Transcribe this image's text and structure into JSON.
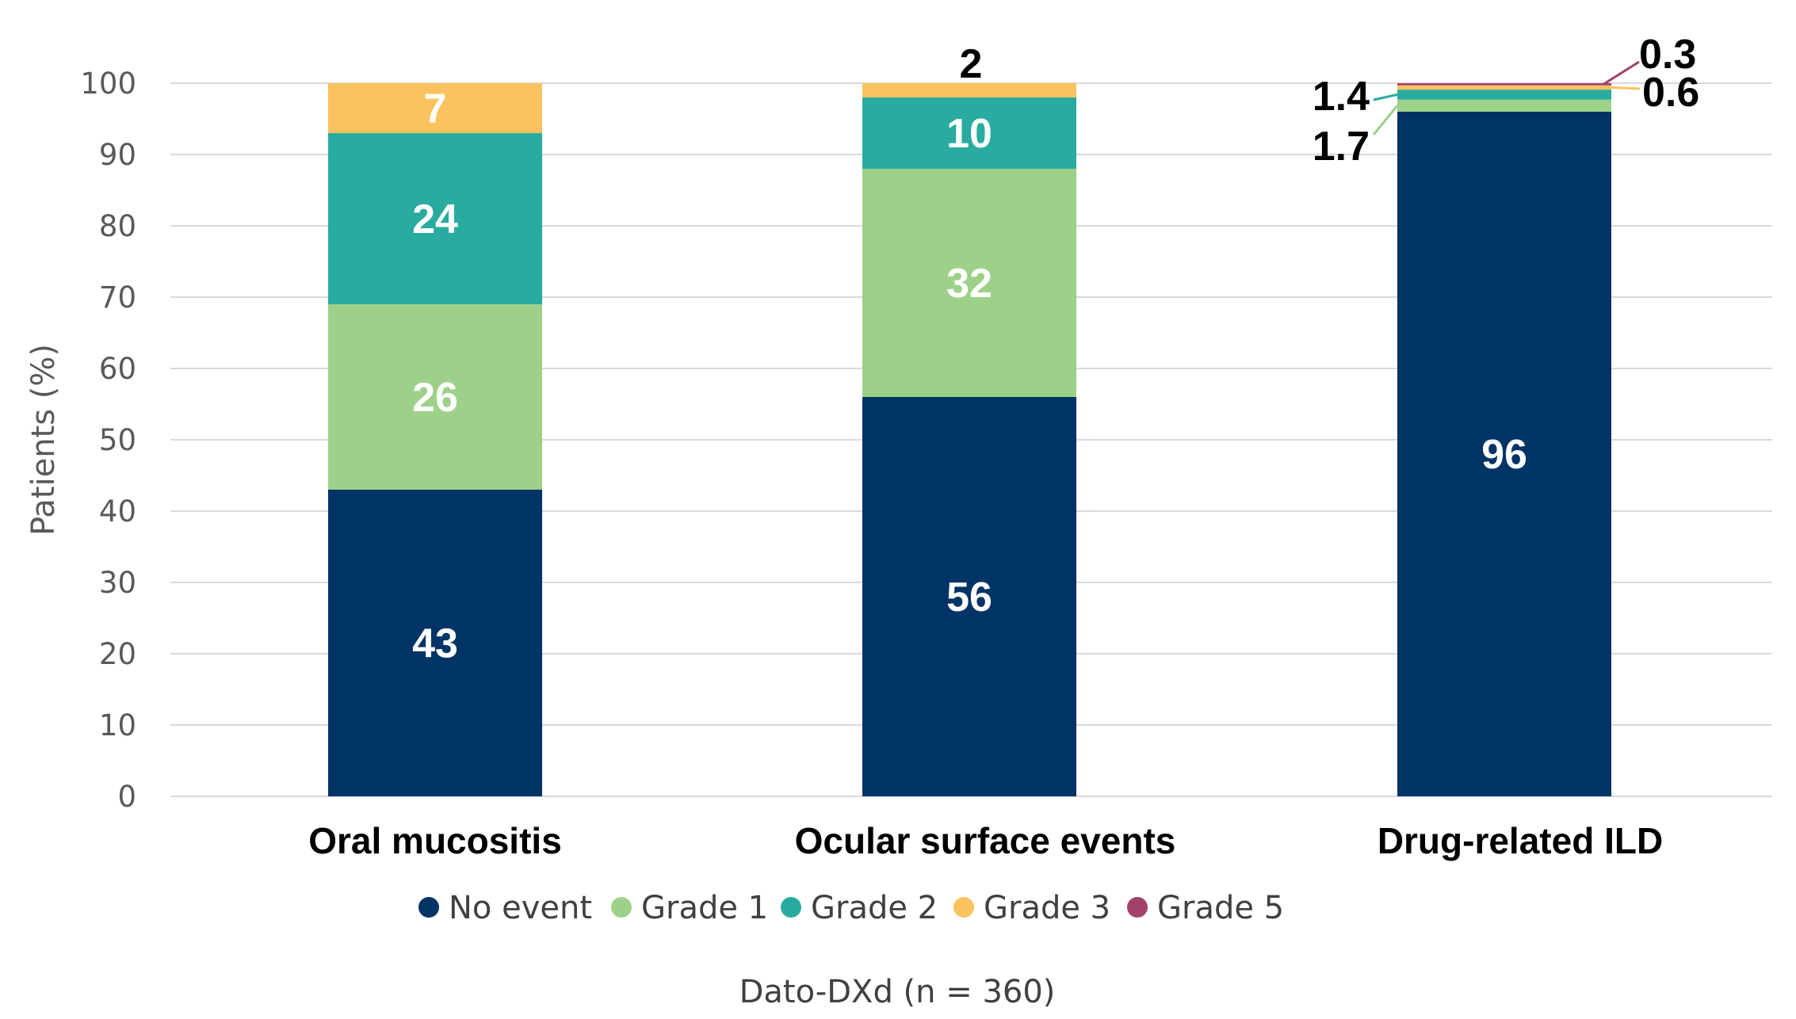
{
  "chart_data": {
    "type": "bar",
    "stacked": true,
    "categories": [
      "Oral mucositis",
      "Ocular surface events",
      "Drug-related ILD"
    ],
    "series": [
      {
        "name": "No event",
        "color": "#003366",
        "values": [
          43,
          56,
          96
        ]
      },
      {
        "name": "Grade 1",
        "color": "#9DD189",
        "values": [
          26,
          32,
          1.7
        ]
      },
      {
        "name": "Grade 2",
        "color": "#2AAB9F",
        "values": [
          24,
          10,
          1.4
        ]
      },
      {
        "name": "Grade 3",
        "color": "#FAC35F",
        "values": [
          7,
          2,
          0.6
        ]
      },
      {
        "name": "Grade 5",
        "color": "#A1426D",
        "values": [
          0,
          0,
          0.3
        ]
      }
    ],
    "data_labels": [
      [
        "43",
        "26",
        "24",
        "7",
        ""
      ],
      [
        "56",
        "32",
        "10",
        "2",
        ""
      ],
      [
        "96",
        "1.7",
        "1.4",
        "0.6",
        "0.3"
      ]
    ],
    "ylabel": "Patients (%)",
    "xlabel": "Dato-DXd (n = 360)",
    "ylim": [
      0,
      100
    ],
    "yticks": [
      0,
      10,
      20,
      30,
      40,
      50,
      60,
      70,
      80,
      90,
      100
    ],
    "grid": true,
    "legend": "bottom"
  }
}
